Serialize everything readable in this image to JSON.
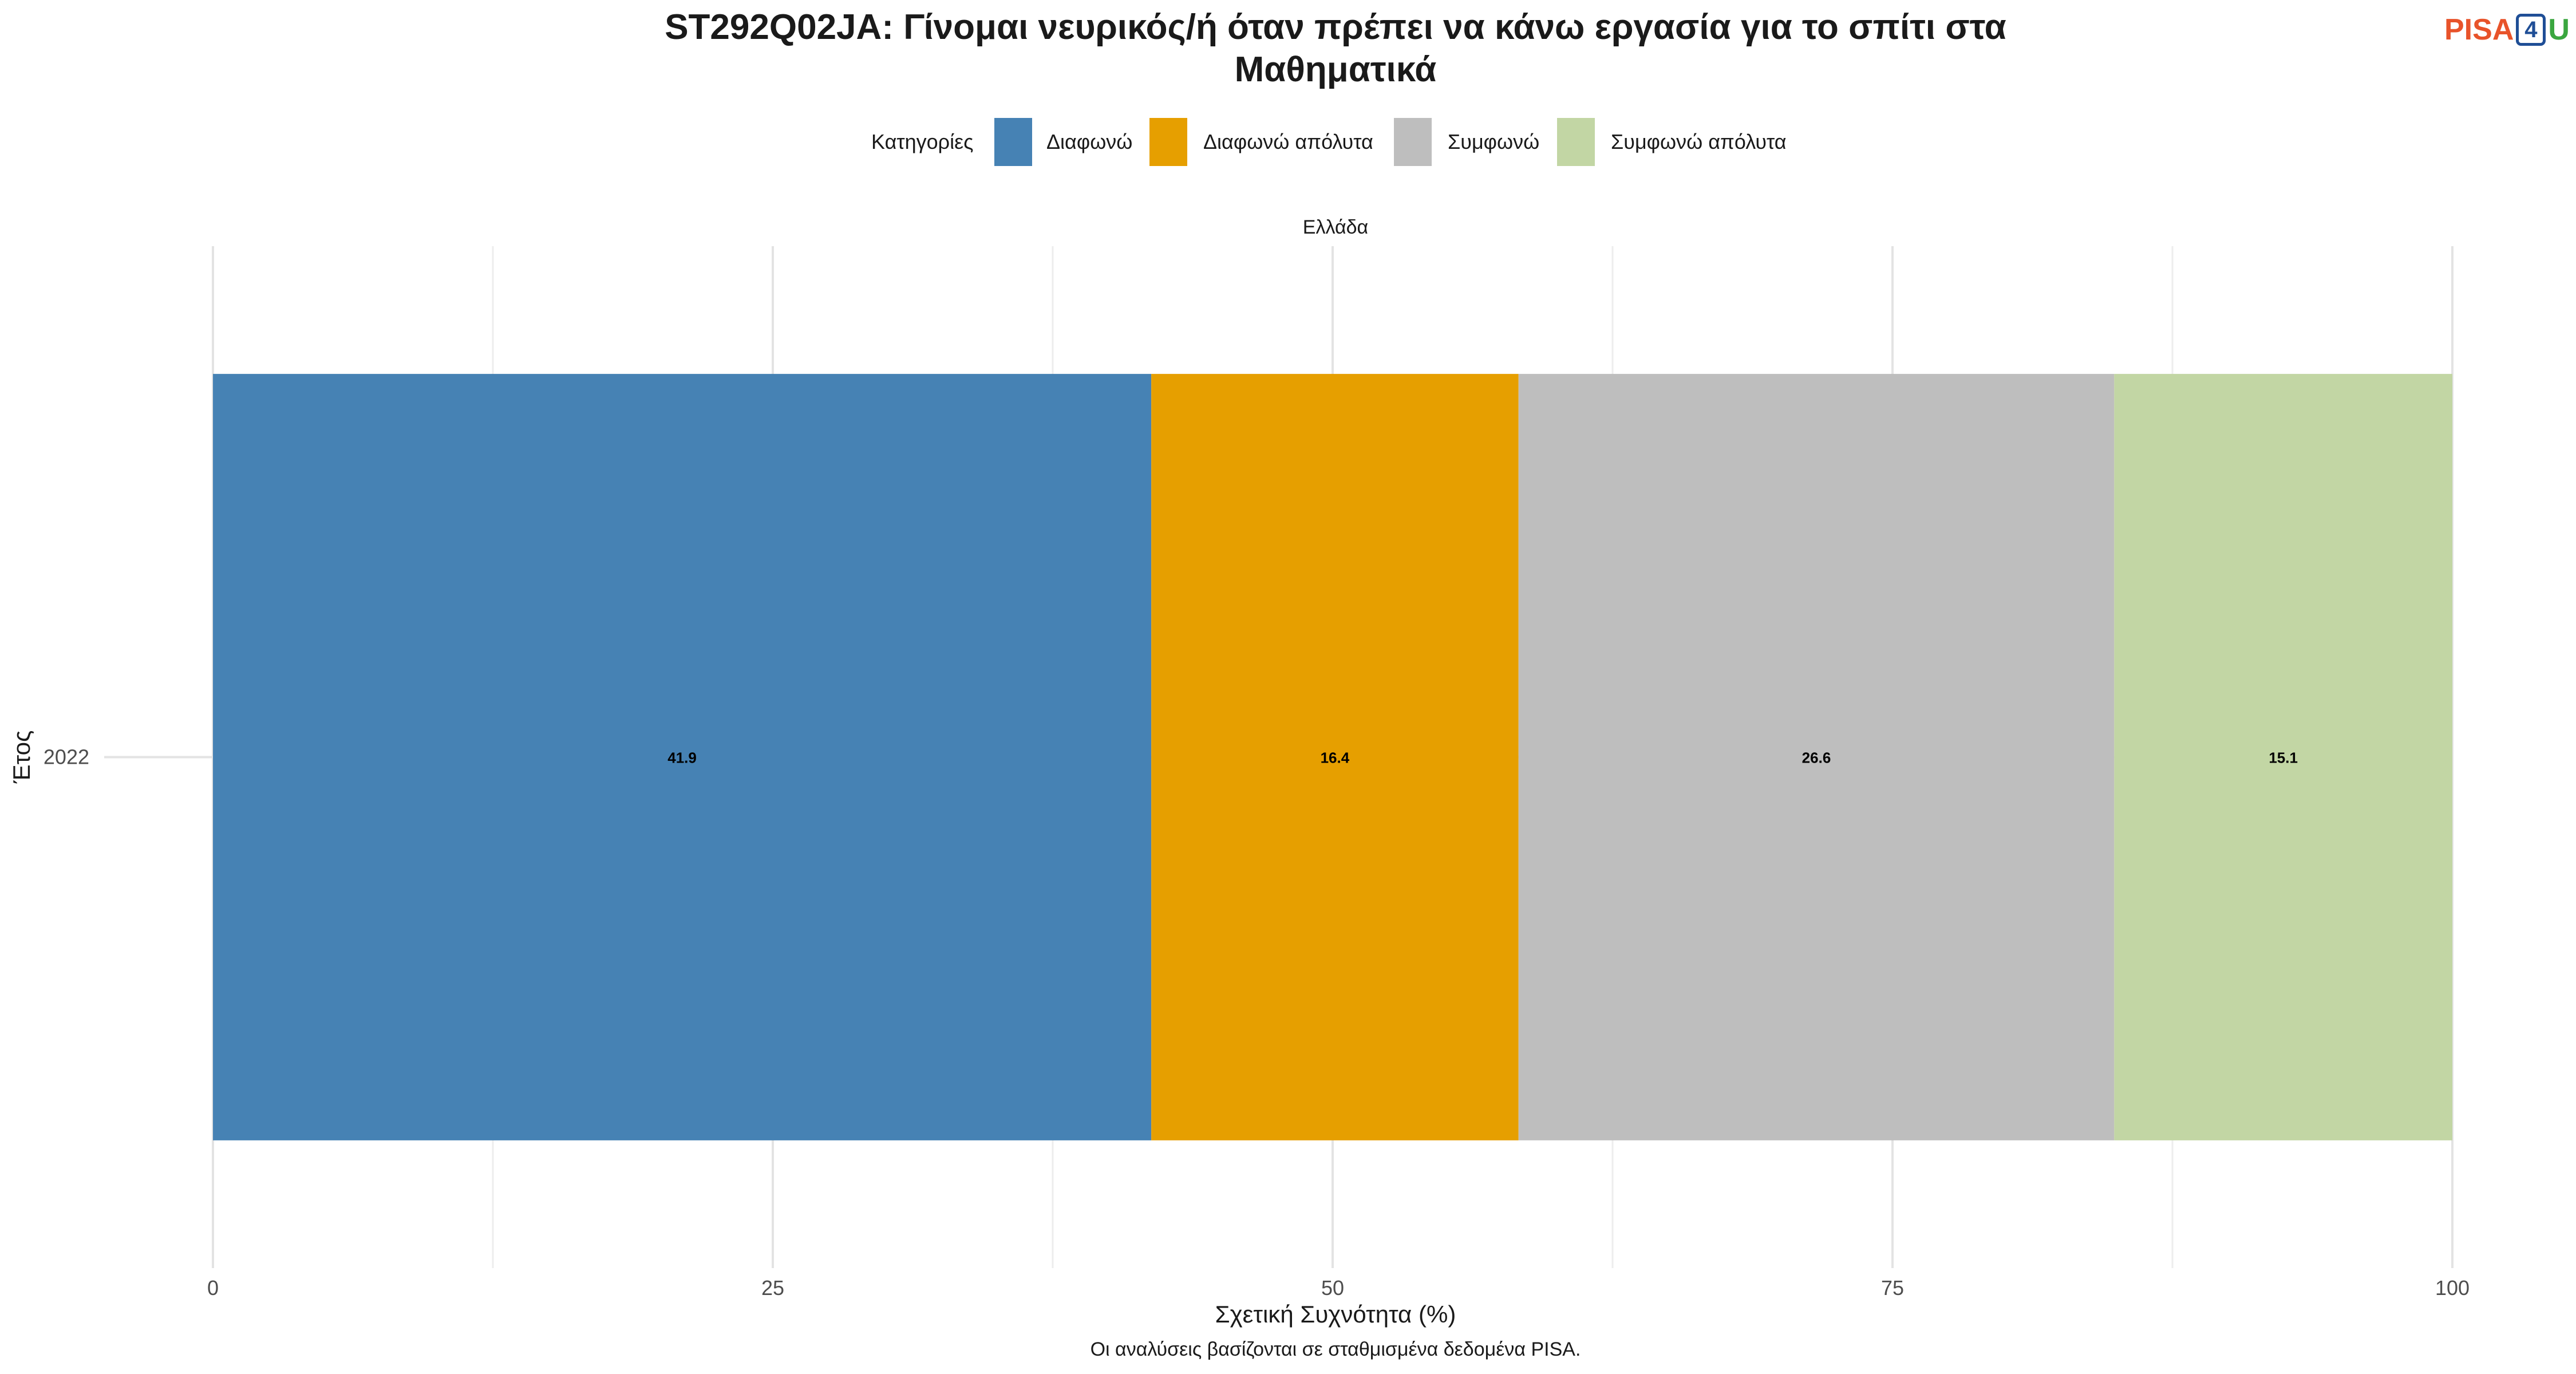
{
  "chart_data": {
    "type": "bar",
    "orientation": "horizontal",
    "stacked": true,
    "title": "ST292Q02JA: Γίνομαι νευρικός/ή όταν πρέπει να κάνω εργασία για το σπίτι στα Μαθηματικά",
    "title_lines": [
      "ST292Q02JA: Γίνομαι νευρικός/ή όταν πρέπει να κάνω εργασία για το σπίτι στα",
      "Μαθηματικά"
    ],
    "facet_label": "Ελλάδα",
    "xlabel": "Σχετική Συχνότητα (%)",
    "ylabel": "Έτος",
    "caption": "Οι αναλύσεις βασίζονται σε σταθμισμένα δεδομένα PISA.",
    "xlim": [
      0,
      100
    ],
    "x_ticks": [
      0,
      25,
      50,
      75,
      100
    ],
    "categories": [
      "2022"
    ],
    "legend_title": "Κατηγορίες",
    "legend_position": "top",
    "grid": true,
    "series": [
      {
        "name": "Διαφωνώ",
        "values": [
          41.9
        ],
        "color": "#4682b4"
      },
      {
        "name": "Διαφωνώ απόλυτα",
        "values": [
          16.4
        ],
        "color": "#e69f00"
      },
      {
        "name": "Συμφωνώ",
        "values": [
          26.6
        ],
        "color": "#bebebe"
      },
      {
        "name": "Συμφωνώ απόλυτα",
        "values": [
          15.1
        ],
        "color": "#c2d6a4"
      }
    ]
  },
  "logo": {
    "pisa": "PISA",
    "four": "4",
    "u": "U"
  }
}
